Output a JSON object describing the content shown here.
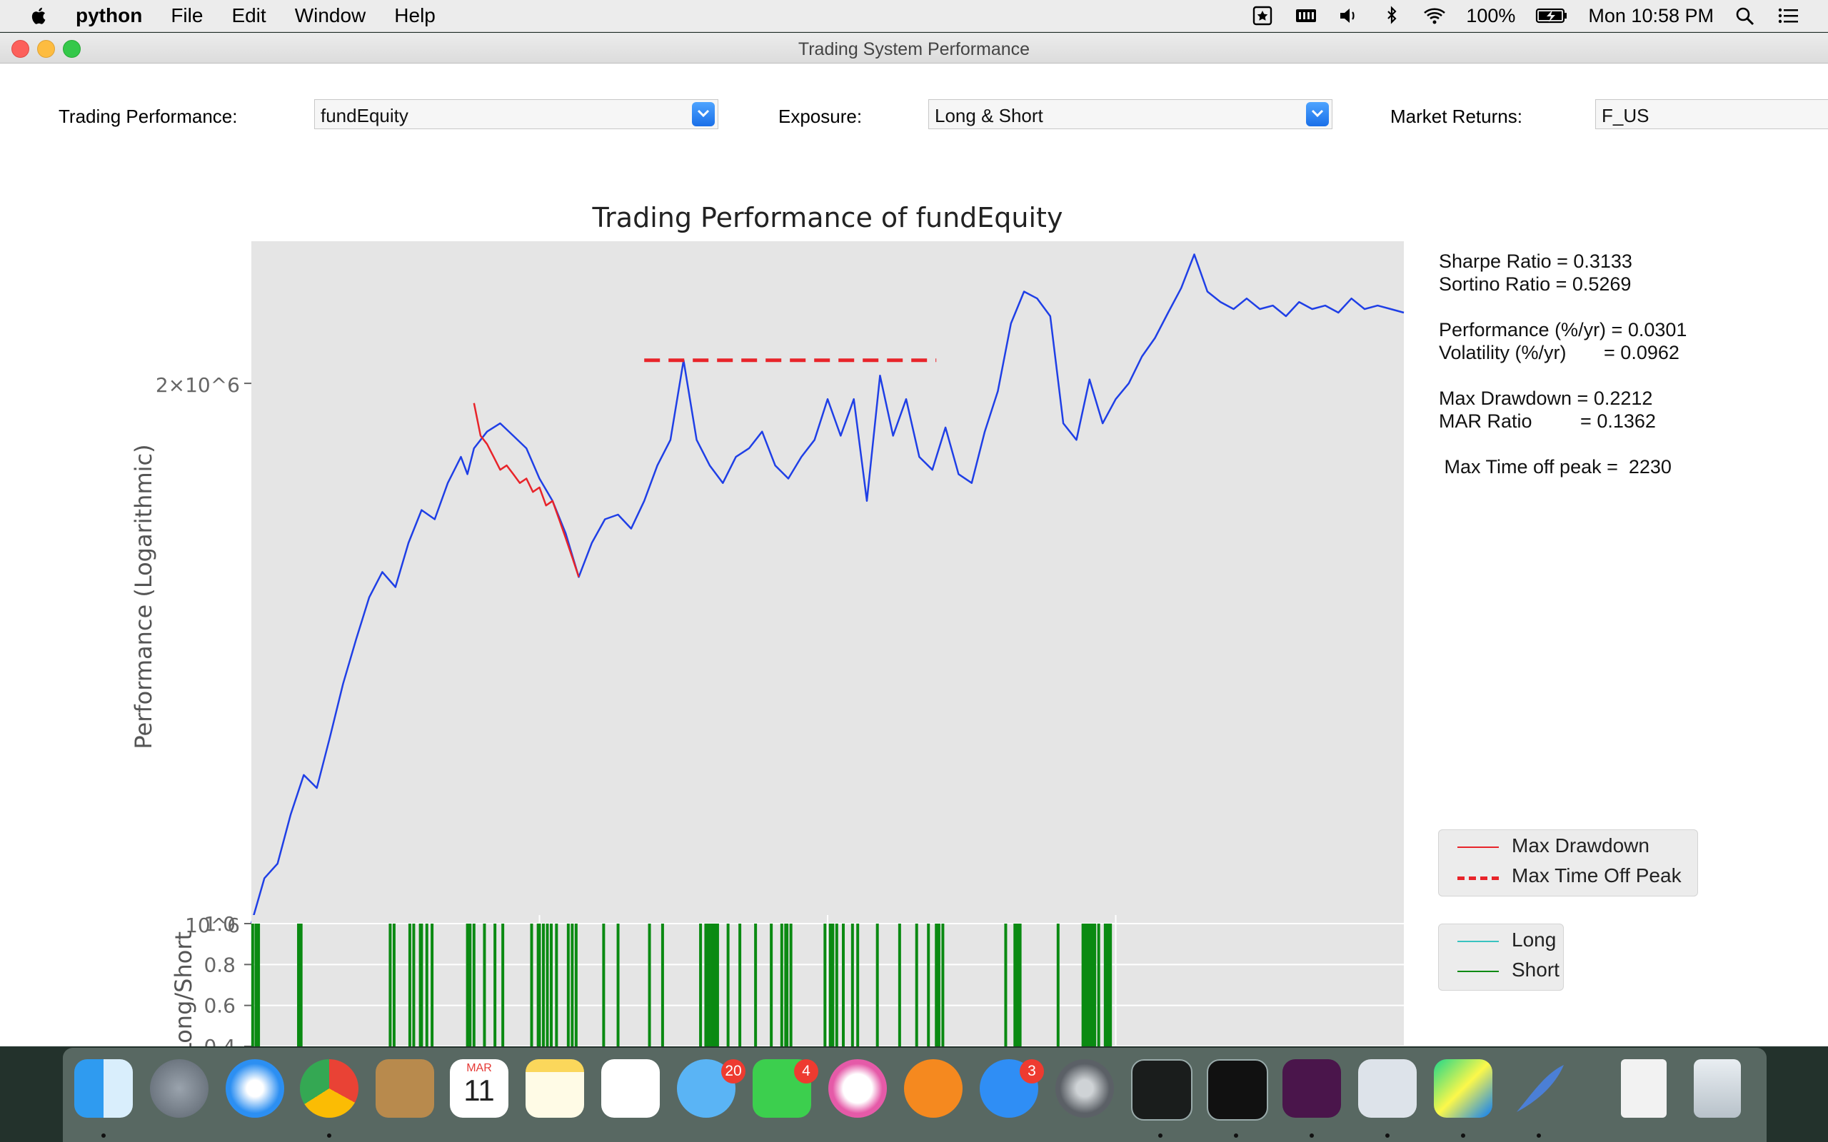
{
  "menubar": {
    "app": "python",
    "items": [
      "File",
      "Edit",
      "Window",
      "Help"
    ],
    "battery": "100%",
    "clock": "Mon 10:58 PM"
  },
  "window": {
    "title": "Trading System Performance"
  },
  "controls": {
    "trading_label": "Trading Performance:",
    "trading_value": "fundEquity",
    "exposure_label": "Exposure:",
    "exposure_value": "Long & Short",
    "market_label": "Market Returns:",
    "market_value": "F_US"
  },
  "stats": {
    "sharpe": "Sharpe Ratio = 0.3133",
    "sortino": "Sortino Ratio = 0.5269",
    "performance": "Performance (%/yr) = 0.0301",
    "volatility": "Volatility (%/yr)       = 0.0962",
    "max_drawdown": "Max Drawdown = 0.2212",
    "mar": "MAR Ratio         = 0.1362",
    "max_time": " Max Time off peak =  2230"
  },
  "legend_main": {
    "max_drawdown": "Max Drawdown",
    "max_time_off_peak": "Max Time Off Peak"
  },
  "legend_sub": {
    "long": "Long",
    "short": "Short"
  },
  "colors": {
    "equity": "#1f3fe6",
    "drawdown": "#e8242a",
    "short": "#0a8a12",
    "long": "#39c3c0",
    "axes_bg": "#e5e5e5"
  },
  "dock": {
    "icons": [
      "finder-icon",
      "launchpad-icon",
      "safari-icon",
      "chrome-icon",
      "contacts-icon",
      "calendar-icon",
      "notes-icon",
      "reminders-icon",
      "messages-icon",
      "facetime-icon",
      "itunes-icon",
      "ibooks-icon",
      "appstore-icon",
      "system-preferences-icon",
      "activity-monitor-icon",
      "terminal-icon",
      "slack-icon",
      "textedit-icon",
      "pycharm-icon",
      "quill-icon",
      "document-icon",
      "trash-icon"
    ],
    "calendar_month": "MAR",
    "calendar_day": "11",
    "messages_badge": "20",
    "facetime_badge": "4",
    "appstore_badge": "3"
  },
  "chart_data": [
    {
      "type": "line",
      "title": "Trading Performance of fundEquity",
      "ylabel": "Performance (Logarithmic)",
      "xlabel": "",
      "yscale": "log",
      "ytick_labels": [
        "10^6",
        "2×10^6"
      ],
      "ylim": [
        1000000,
        2400000
      ],
      "x_range": [
        0,
        8800
      ],
      "grid": false,
      "series": [
        {
          "name": "equity",
          "x": [
            0,
            100,
            200,
            300,
            400,
            500,
            600,
            700,
            800,
            900,
            1000,
            1100,
            1200,
            1300,
            1400,
            1500,
            1600,
            1650,
            1700,
            1800,
            1900,
            2000,
            2100,
            2200,
            2300,
            2400,
            2500,
            2600,
            2700,
            2800,
            2900,
            3000,
            3100,
            3200,
            3300,
            3400,
            3500,
            3600,
            3700,
            3800,
            3900,
            4000,
            4100,
            4200,
            4300,
            4400,
            4500,
            4600,
            4700,
            4800,
            4900,
            5000,
            5100,
            5200,
            5300,
            5400,
            5500,
            5600,
            5700,
            5800,
            5900,
            6000,
            6100,
            6200,
            6300,
            6400,
            6500,
            6600,
            6700,
            6800,
            6900,
            7000,
            7100,
            7200,
            7300,
            7400,
            7500,
            7600,
            7700,
            7800,
            7900,
            8000,
            8100,
            8200,
            8300,
            8400,
            8500,
            8600,
            8700,
            8800
          ],
          "y": [
            1000000,
            1060000,
            1080000,
            1150000,
            1210000,
            1190000,
            1270000,
            1360000,
            1440000,
            1520000,
            1570000,
            1540000,
            1630000,
            1700000,
            1680000,
            1760000,
            1820000,
            1780000,
            1840000,
            1880000,
            1900000,
            1870000,
            1840000,
            1770000,
            1720000,
            1650000,
            1560000,
            1630000,
            1680000,
            1690000,
            1660000,
            1720000,
            1800000,
            1860000,
            2060000,
            1860000,
            1800000,
            1760000,
            1820000,
            1840000,
            1880000,
            1800000,
            1770000,
            1820000,
            1860000,
            1960000,
            1870000,
            1960000,
            1720000,
            2020000,
            1870000,
            1960000,
            1820000,
            1790000,
            1890000,
            1780000,
            1760000,
            1880000,
            1980000,
            2160000,
            2250000,
            2230000,
            2180000,
            1900000,
            1860000,
            2010000,
            1900000,
            1960000,
            2000000,
            2070000,
            2120000,
            2190000,
            2260000,
            2360000,
            2250000,
            2220000,
            2200000,
            2230000,
            2200000,
            2210000,
            2180000,
            2220000,
            2200000,
            2210000,
            2190000,
            2230000,
            2200000,
            2210000,
            2200000,
            2190000
          ]
        },
        {
          "name": "Max Drawdown",
          "x": [
            1700,
            1750,
            1800,
            1850,
            1900,
            1950,
            2000,
            2050,
            2100,
            2150,
            2200,
            2250,
            2300,
            2350,
            2400,
            2450,
            2500
          ],
          "y": [
            1950000,
            1870000,
            1850000,
            1820000,
            1790000,
            1800000,
            1780000,
            1760000,
            1770000,
            1740000,
            1750000,
            1710000,
            1720000,
            1680000,
            1640000,
            1600000,
            1560000
          ]
        },
        {
          "name": "Max Time Off Peak",
          "x": [
            3000,
            5230
          ],
          "y": [
            2060000,
            2060000
          ]
        }
      ]
    },
    {
      "type": "bar",
      "ylabel": "Long/Short",
      "ylim": [
        0.4,
        1.0
      ],
      "ytick_labels": [
        "0.4",
        "0.6",
        "0.8",
        "1.0"
      ],
      "series": [
        {
          "name": "Long",
          "x": []
        },
        {
          "name": "Short",
          "x": [
            10,
            35,
            55,
            360,
            370,
            380,
            1060,
            1090,
            1210,
            1240,
            1290,
            1300,
            1340,
            1380,
            1650,
            1670,
            1700,
            1780,
            1860,
            1920,
            2140,
            2190,
            2200,
            2230,
            2260,
            2290,
            2330,
            2420,
            2450,
            2480,
            2690,
            2800,
            3040,
            3140,
            3430,
            3470,
            3480,
            3500,
            3520,
            3540,
            3560,
            3640,
            3730,
            3850,
            3970,
            4050,
            4080,
            4090,
            4120,
            4380,
            4420,
            4440,
            4470,
            4520,
            4590,
            4630,
            4780,
            4950,
            5080,
            5170,
            5230,
            5250,
            5280,
            5760,
            5830,
            5840,
            5850,
            5860,
            5870,
            6160,
            6350,
            6370,
            6380,
            6400,
            6420,
            6440,
            6470,
            6520,
            6530,
            6550,
            6560
          ]
        }
      ]
    }
  ]
}
